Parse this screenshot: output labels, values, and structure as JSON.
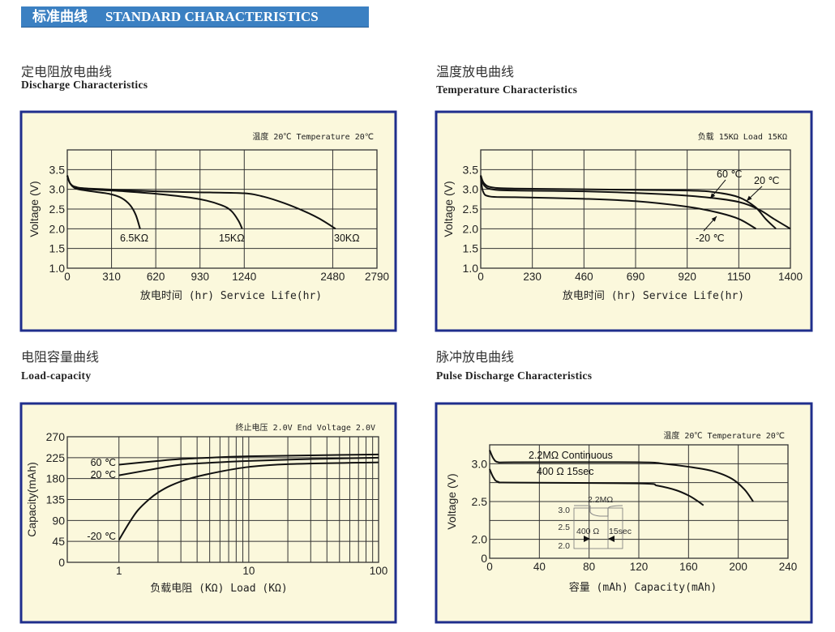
{
  "header": {
    "title_cn": "标准曲线",
    "title_en": "STANDARD CHARACTERISTICS",
    "color": "#3b80c2"
  },
  "sections": [
    {
      "title_cn": "定电阻放电曲线",
      "title_en": "Discharge Characteristics"
    },
    {
      "title_cn": "温度放电曲线",
      "title_en": "Temperature Characteristics"
    },
    {
      "title_cn": "电阻容量曲线",
      "title_en": "Load-capacity"
    },
    {
      "title_cn": "脉冲放电曲线",
      "title_en": "Pulse Discharge Characteristics"
    }
  ],
  "colors": {
    "panel_bg": "#fbf8dc",
    "panel_border": "#1f2e8c",
    "grid": "#333333",
    "curve": "#111111"
  },
  "chart_data": [
    {
      "type": "line",
      "note": "温度 20℃  Temperature 20℃",
      "xlabel": "放电时间 (hr) Service Life(hr)",
      "ylabel": "Voltage (V)",
      "x_tick_labels": [
        "0",
        "310",
        "620",
        "930",
        "1240",
        "2480",
        "2790"
      ],
      "x_ticks": [
        0,
        310,
        620,
        930,
        1240,
        2480,
        2790
      ],
      "y_tick_labels": [
        "1.0",
        "1.5",
        "2.0",
        "2.5",
        "3.0",
        "3.5"
      ],
      "y_ticks": [
        1.0,
        1.5,
        2.0,
        2.5,
        3.0,
        3.5
      ],
      "xlim": [
        0,
        2790
      ],
      "ylim": [
        1.0,
        4.0
      ],
      "grid": true,
      "series": [
        {
          "name": "6.5KΩ",
          "x": [
            0,
            20,
            60,
            150,
            300,
            380,
            440,
            480,
            510
          ],
          "y": [
            3.35,
            3.15,
            3.02,
            2.96,
            2.88,
            2.78,
            2.6,
            2.35,
            2.0
          ]
        },
        {
          "name": "15KΩ",
          "x": [
            0,
            20,
            60,
            150,
            400,
            700,
            930,
            1080,
            1150,
            1200,
            1225
          ],
          "y": [
            3.35,
            3.15,
            3.04,
            3.0,
            2.95,
            2.86,
            2.75,
            2.6,
            2.45,
            2.2,
            2.0
          ]
        },
        {
          "name": "30KΩ",
          "x": [
            0,
            20,
            60,
            150,
            620,
            1000,
            1240,
            1500,
            1800,
            2100,
            2300,
            2500
          ],
          "y": [
            3.35,
            3.15,
            3.06,
            3.02,
            2.95,
            2.92,
            2.9,
            2.82,
            2.65,
            2.43,
            2.25,
            2.0
          ]
        }
      ]
    },
    {
      "type": "line",
      "note": "负载 15KΩ  Load 15KΩ",
      "xlabel": "放电时间 (hr) Service Life(hr)",
      "ylabel": "Voltage (V)",
      "x_tick_labels": [
        "0",
        "230",
        "460",
        "690",
        "920",
        "1150",
        "1400"
      ],
      "x_ticks": [
        0,
        230,
        460,
        690,
        920,
        1150,
        1400
      ],
      "y_tick_labels": [
        "1.0",
        "1.5",
        "2.0",
        "2.5",
        "3.0",
        "3.5"
      ],
      "y_ticks": [
        1.0,
        1.5,
        2.0,
        2.5,
        3.0,
        3.5
      ],
      "xlim": [
        0,
        1400
      ],
      "ylim": [
        1.0,
        4.0
      ],
      "grid": true,
      "series": [
        {
          "name": "60 ℃",
          "x": [
            0,
            15,
            50,
            150,
            460,
            920,
            1050,
            1150,
            1230,
            1280,
            1330
          ],
          "y": [
            3.35,
            3.15,
            3.05,
            3.02,
            3.0,
            2.97,
            2.92,
            2.8,
            2.55,
            2.25,
            2.0
          ]
        },
        {
          "name": "20 ℃",
          "x": [
            0,
            15,
            50,
            150,
            460,
            800,
            1000,
            1150,
            1250,
            1320,
            1400
          ],
          "y": [
            3.35,
            3.1,
            3.0,
            2.97,
            2.95,
            2.88,
            2.8,
            2.68,
            2.48,
            2.25,
            2.0
          ]
        },
        {
          "name": "-20 ℃",
          "x": [
            0,
            10,
            40,
            150,
            460,
            690,
            920,
            1050,
            1150,
            1233
          ],
          "y": [
            3.35,
            2.95,
            2.82,
            2.8,
            2.76,
            2.7,
            2.56,
            2.42,
            2.25,
            2.0
          ]
        }
      ],
      "annotations": [
        "20 ℃",
        "60 ℃",
        "-20 ℃"
      ]
    },
    {
      "type": "line",
      "note": "终止电压 2.0V  End Voltage 2.0V",
      "xlabel": "负载电阻 (KΩ) Load (KΩ)",
      "ylabel": "Capacity(mAh)",
      "x_scale": "log",
      "x_tick_labels": [
        "1",
        "10",
        "100"
      ],
      "x_ticks": [
        1,
        10,
        100
      ],
      "y_tick_labels": [
        "0",
        "45",
        "90",
        "135",
        "180",
        "225",
        "270"
      ],
      "y_ticks": [
        0,
        45,
        90,
        135,
        180,
        225,
        270
      ],
      "xlim": [
        0.4,
        100
      ],
      "ylim": [
        0,
        270
      ],
      "grid": true,
      "series": [
        {
          "name": "60 ℃",
          "x": [
            1,
            2,
            3,
            5,
            10,
            30,
            100
          ],
          "y": [
            210,
            218,
            222,
            225,
            228,
            230,
            232
          ]
        },
        {
          "name": "20 ℃",
          "x": [
            1,
            2,
            3,
            5,
            10,
            30,
            100
          ],
          "y": [
            187,
            202,
            210,
            214,
            218,
            222,
            225
          ]
        },
        {
          "name": "-20 ℃",
          "x": [
            1,
            1.2,
            1.4,
            1.7,
            2,
            2.5,
            3.5,
            6,
            10,
            20,
            100
          ],
          "y": [
            48,
            85,
            112,
            135,
            150,
            165,
            180,
            195,
            205,
            211,
            215
          ]
        }
      ]
    },
    {
      "type": "line",
      "note": "温度 20℃  Temperature 20℃",
      "xlabel": "容量 (mAh) Capacity(mAh)",
      "ylabel": "Voltage (V)",
      "x_tick_labels": [
        "0",
        "40",
        "80",
        "120",
        "160",
        "200",
        "240"
      ],
      "x_ticks": [
        0,
        40,
        80,
        120,
        160,
        200,
        240
      ],
      "y_tick_labels": [
        "0",
        "2.0",
        "2.5",
        "3.0"
      ],
      "y_ticks": [
        0,
        2.0,
        2.5,
        3.0
      ],
      "xlim": [
        0,
        240
      ],
      "ylim": [
        0,
        3.25
      ],
      "y_axis_break": true,
      "grid": true,
      "series": [
        {
          "name": "2.2MΩ  Continuous",
          "x": [
            0,
            3,
            7,
            20,
            120,
            140,
            160,
            180,
            195,
            205,
            212
          ],
          "y": [
            3.18,
            3.07,
            3.02,
            3.02,
            3.02,
            3.0,
            2.96,
            2.9,
            2.8,
            2.66,
            2.5
          ]
        },
        {
          "name": "400 Ω 15sec",
          "x": [
            0,
            3,
            7,
            20,
            120,
            135,
            150,
            160,
            167,
            172
          ],
          "y": [
            2.93,
            2.82,
            2.76,
            2.75,
            2.74,
            2.71,
            2.65,
            2.58,
            2.51,
            2.45
          ]
        }
      ],
      "inset": {
        "top_label": "2.2MΩ",
        "y_labels": [
          "3.0",
          "2.5",
          "2.0"
        ],
        "pulse_label": "400 Ω",
        "duration_label": "15sec"
      }
    }
  ]
}
